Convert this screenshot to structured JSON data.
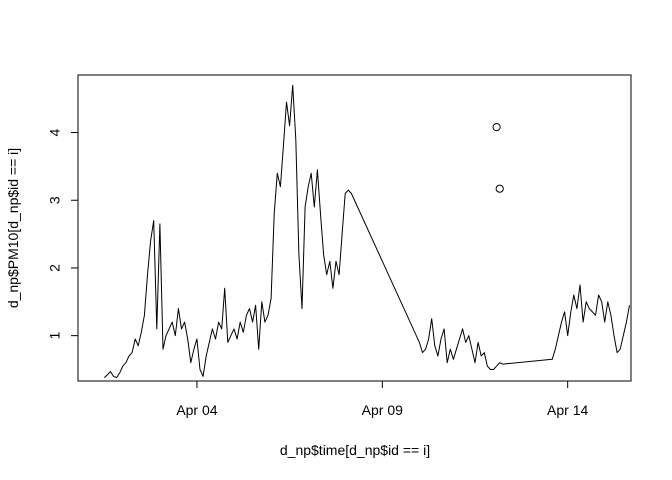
{
  "chart_data": {
    "type": "line",
    "title": "",
    "xlabel": "d_np$time[d_np$id == i]",
    "ylabel": "d_np$PM10[d_np$id == i]",
    "x_tick_labels": [
      "Apr 04",
      "Apr 09",
      "Apr 14"
    ],
    "x_ticks": [
      "2024-04-04",
      "2024-04-09",
      "2024-04-14"
    ],
    "y_ticks": [
      1,
      2,
      3,
      4
    ],
    "xlim": [
      "2024-03-31T19:00",
      "2024-04-15T17:00"
    ],
    "ylim": [
      0.33,
      4.85
    ],
    "grid": false,
    "series": [
      {
        "style": "line",
        "x": [
          "2024-04-01T12:00",
          "2024-04-01T14:00",
          "2024-04-01T16:00",
          "2024-04-01T18:00",
          "2024-04-01T20:00",
          "2024-04-01T22:00",
          "2024-04-02T00:00",
          "2024-04-02T02:00",
          "2024-04-02T04:00",
          "2024-04-02T06:00",
          "2024-04-02T08:00",
          "2024-04-02T10:00",
          "2024-04-02T12:00",
          "2024-04-02T14:00",
          "2024-04-02T16:00",
          "2024-04-02T18:00",
          "2024-04-02T20:00",
          "2024-04-02T22:00",
          "2024-04-03T00:00",
          "2024-04-03T02:00",
          "2024-04-03T04:00",
          "2024-04-03T06:00",
          "2024-04-03T08:00",
          "2024-04-03T10:00",
          "2024-04-03T12:00",
          "2024-04-03T14:00",
          "2024-04-03T16:00",
          "2024-04-03T18:00",
          "2024-04-03T20:00",
          "2024-04-03T22:00",
          "2024-04-04T00:00",
          "2024-04-04T02:00",
          "2024-04-04T04:00",
          "2024-04-04T06:00",
          "2024-04-04T08:00",
          "2024-04-04T10:00",
          "2024-04-04T12:00",
          "2024-04-04T14:00",
          "2024-04-04T16:00",
          "2024-04-04T18:00",
          "2024-04-04T20:00",
          "2024-04-04T22:00",
          "2024-04-05T00:00",
          "2024-04-05T02:00",
          "2024-04-05T04:00",
          "2024-04-05T06:00",
          "2024-04-05T08:00",
          "2024-04-05T10:00",
          "2024-04-05T12:00",
          "2024-04-05T14:00",
          "2024-04-05T16:00",
          "2024-04-05T18:00",
          "2024-04-05T20:00",
          "2024-04-05T22:00",
          "2024-04-06T00:00",
          "2024-04-06T02:00",
          "2024-04-06T04:00",
          "2024-04-06T06:00",
          "2024-04-06T08:00",
          "2024-04-06T10:00",
          "2024-04-06T12:00",
          "2024-04-06T14:00",
          "2024-04-06T16:00",
          "2024-04-06T18:00",
          "2024-04-06T20:00",
          "2024-04-06T22:00",
          "2024-04-07T00:00",
          "2024-04-07T02:00",
          "2024-04-07T04:00",
          "2024-04-07T06:00",
          "2024-04-07T08:00",
          "2024-04-07T10:00",
          "2024-04-07T12:00",
          "2024-04-07T14:00",
          "2024-04-07T16:00",
          "2024-04-07T18:00",
          "2024-04-07T20:00",
          "2024-04-07T22:00",
          "2024-04-08T00:00",
          "2024-04-08T02:00",
          "2024-04-08T04:00",
          "2024-04-10T00:00",
          "2024-04-10T02:00",
          "2024-04-10T04:00",
          "2024-04-10T06:00",
          "2024-04-10T08:00",
          "2024-04-10T10:00",
          "2024-04-10T12:00",
          "2024-04-10T14:00",
          "2024-04-10T16:00",
          "2024-04-10T18:00",
          "2024-04-10T20:00",
          "2024-04-10T22:00",
          "2024-04-11T00:00",
          "2024-04-11T02:00",
          "2024-04-11T04:00",
          "2024-04-11T06:00",
          "2024-04-11T08:00",
          "2024-04-11T10:00",
          "2024-04-11T12:00",
          "2024-04-11T14:00",
          "2024-04-11T16:00",
          "2024-04-11T18:00",
          "2024-04-11T20:00",
          "2024-04-11T22:00",
          "2024-04-12T00:00",
          "2024-04-12T02:00",
          "2024-04-12T04:00",
          "2024-04-12T06:00",
          "2024-04-13T14:00",
          "2024-04-13T16:00",
          "2024-04-13T18:00",
          "2024-04-13T20:00",
          "2024-04-13T22:00",
          "2024-04-14T00:00",
          "2024-04-14T02:00",
          "2024-04-14T04:00",
          "2024-04-14T06:00",
          "2024-04-14T08:00",
          "2024-04-14T10:00",
          "2024-04-14T12:00",
          "2024-04-14T14:00",
          "2024-04-14T16:00",
          "2024-04-14T18:00",
          "2024-04-14T20:00",
          "2024-04-14T22:00",
          "2024-04-15T00:00",
          "2024-04-15T02:00",
          "2024-04-15T04:00",
          "2024-04-15T06:00",
          "2024-04-15T08:00",
          "2024-04-15T10:00",
          "2024-04-15T12:00",
          "2024-04-15T14:00",
          "2024-04-15T16:00"
        ],
        "y": [
          0.38,
          0.42,
          0.47,
          0.4,
          0.38,
          0.45,
          0.55,
          0.6,
          0.7,
          0.75,
          0.95,
          0.85,
          1.05,
          1.3,
          1.9,
          2.4,
          2.7,
          1.1,
          2.65,
          0.8,
          1.0,
          1.1,
          1.2,
          1.0,
          1.4,
          1.1,
          1.2,
          0.95,
          0.6,
          0.8,
          0.95,
          0.5,
          0.4,
          0.7,
          0.9,
          1.1,
          0.95,
          1.2,
          1.1,
          1.7,
          0.9,
          1.0,
          1.1,
          0.95,
          1.2,
          1.05,
          1.3,
          1.4,
          1.2,
          1.45,
          0.8,
          1.5,
          1.2,
          1.3,
          1.55,
          2.8,
          3.4,
          3.2,
          3.8,
          4.45,
          4.1,
          4.7,
          3.9,
          2.2,
          1.4,
          2.9,
          3.2,
          3.4,
          2.9,
          3.45,
          2.8,
          2.2,
          1.9,
          2.1,
          1.7,
          2.1,
          1.9,
          2.5,
          3.1,
          3.15,
          3.1,
          0.9,
          0.75,
          0.8,
          0.95,
          1.25,
          0.85,
          0.7,
          0.95,
          1.1,
          0.6,
          0.8,
          0.65,
          0.8,
          0.95,
          1.1,
          0.9,
          1.0,
          0.8,
          0.6,
          0.9,
          0.7,
          0.75,
          0.55,
          0.5,
          0.5,
          0.55,
          0.6,
          0.58,
          0.65,
          0.8,
          1.0,
          1.2,
          1.35,
          1.0,
          1.35,
          1.6,
          1.4,
          1.75,
          1.2,
          1.5,
          1.4,
          1.35,
          1.3,
          1.6,
          1.5,
          1.2,
          1.5,
          1.3,
          1.0,
          0.75,
          0.8,
          1.0,
          1.2,
          1.45
        ]
      },
      {
        "style": "points",
        "x": [
          "2024-04-12T02:00",
          "2024-04-12T04:00"
        ],
        "y": [
          4.08,
          3.17
        ]
      }
    ]
  }
}
